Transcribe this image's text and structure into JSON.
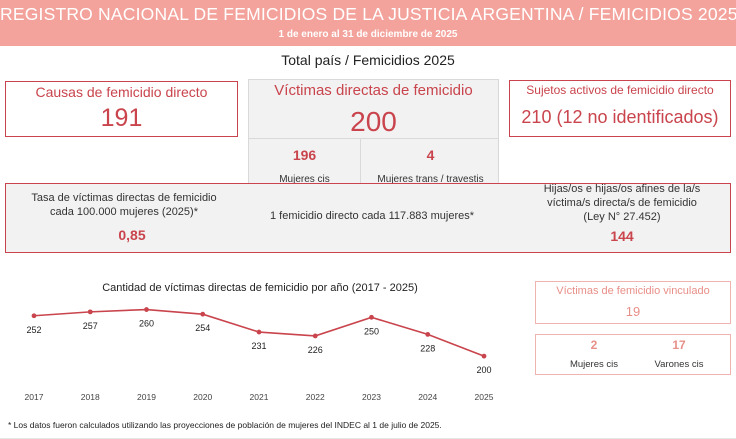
{
  "header": {
    "title": "REGISTRO NACIONAL DE FEMICIDIOS DE LA JUSTICIA ARGENTINA / FEMICIDIOS 2025",
    "subtitle": "1 de enero al 31 de diciembre de 2025"
  },
  "section_title": "Total país / Femicidios 2025",
  "causas": {
    "label": "Causas de femicidio directo",
    "value": "191"
  },
  "victimas": {
    "label": "Víctimas directas de femicidio",
    "value": "200",
    "mujeres_value": "196",
    "mujeres_label": "Mujeres cis",
    "trans_value": "4",
    "trans_label": "Mujeres trans / travestis"
  },
  "sujetos": {
    "label": "Sujetos activos de femicidio directo",
    "value": "210 (12 no identificados)"
  },
  "tasa": {
    "label_line1": "Tasa de víctimas directas de femicidio",
    "label_line2": "cada 100.000 mujeres (2025)*",
    "value": "0,85",
    "ratio_text": "1 femicidio directo cada 117.883 mujeres*"
  },
  "hijos": {
    "line1": "Hijas/os e hijas/os afines de la/s",
    "line2": "víctima/s directa/s de femicidio",
    "line3": "(Ley N° 27.452)",
    "value": "144"
  },
  "vinculado": {
    "label": "Víctimas de femicidio vinculado",
    "value": "19",
    "mujeres_value": "2",
    "mujeres_label": "Mujeres cis",
    "varones_value": "17",
    "varones_label": "Varones cis"
  },
  "chart_data": {
    "type": "line",
    "title": "Cantidad de víctimas directas de femicidio por año (2017 - 2025)",
    "xlabel": "",
    "ylabel": "",
    "categories": [
      "2017",
      "2018",
      "2019",
      "2020",
      "2021",
      "2022",
      "2023",
      "2024",
      "2025"
    ],
    "values": [
      252,
      257,
      260,
      254,
      231,
      226,
      250,
      228,
      200
    ],
    "data_labels": [
      "252",
      "257",
      "260",
      "254",
      "231",
      "226",
      "250",
      "228",
      "200"
    ],
    "ylim": [
      150,
      280
    ],
    "grid": false,
    "color": "#c9444c"
  },
  "footnote": "* Los datos fueron calculados utilizando las proyecciones de población de mujeres del INDEC al 1 de julio de 2025."
}
